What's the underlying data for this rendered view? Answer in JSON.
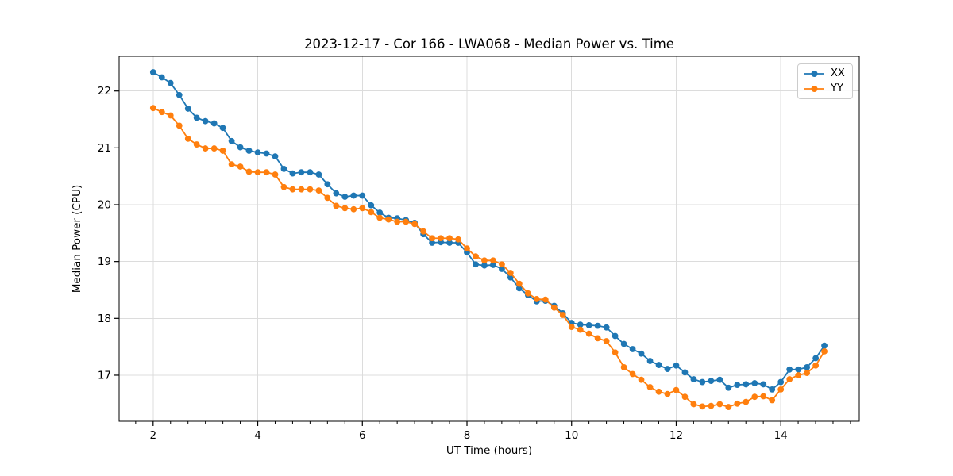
{
  "chart_data": {
    "type": "line",
    "title": "2023-12-17 - Cor 166 - LWA068 - Median Power vs. Time",
    "xlabel": "UT Time (hours)",
    "ylabel": "Median Power (CPU)",
    "xlim": [
      1.35,
      15.5
    ],
    "ylim": [
      16.19,
      22.61
    ],
    "xticks": [
      2,
      4,
      6,
      8,
      10,
      12,
      14
    ],
    "yticks": [
      17,
      18,
      19,
      20,
      21,
      22
    ],
    "x_minor_tick_step": 0.3333,
    "grid": true,
    "grid_color": "#dcdcdc",
    "spine_color": "#000000",
    "background_color": "#ffffff",
    "legend_position": "upper right",
    "x": [
      2.0,
      2.167,
      2.333,
      2.5,
      2.667,
      2.833,
      3.0,
      3.167,
      3.333,
      3.5,
      3.667,
      3.833,
      4.0,
      4.167,
      4.333,
      4.5,
      4.667,
      4.833,
      5.0,
      5.167,
      5.333,
      5.5,
      5.667,
      5.833,
      6.0,
      6.167,
      6.333,
      6.5,
      6.667,
      6.833,
      7.0,
      7.167,
      7.333,
      7.5,
      7.667,
      7.833,
      8.0,
      8.167,
      8.333,
      8.5,
      8.667,
      8.833,
      9.0,
      9.167,
      9.333,
      9.5,
      9.667,
      9.833,
      10.0,
      10.167,
      10.333,
      10.5,
      10.667,
      10.833,
      11.0,
      11.167,
      11.333,
      11.5,
      11.667,
      11.833,
      12.0,
      12.167,
      12.333,
      12.5,
      12.667,
      12.833,
      13.0,
      13.167,
      13.333,
      13.5,
      13.667,
      13.833,
      14.0,
      14.167,
      14.333,
      14.5,
      14.667,
      14.833
    ],
    "series": [
      {
        "name": "XX",
        "color": "#1f77b4",
        "marker": "circle",
        "values": [
          22.33,
          22.24,
          22.14,
          21.93,
          21.69,
          21.53,
          21.47,
          21.43,
          21.35,
          21.12,
          21.01,
          20.95,
          20.92,
          20.9,
          20.85,
          20.63,
          20.55,
          20.57,
          20.57,
          20.53,
          20.36,
          20.2,
          20.14,
          20.16,
          20.16,
          19.99,
          19.86,
          19.77,
          19.76,
          19.73,
          19.68,
          19.48,
          19.33,
          19.34,
          19.33,
          19.33,
          19.16,
          18.95,
          18.93,
          18.94,
          18.87,
          18.72,
          18.53,
          18.41,
          18.3,
          18.31,
          18.22,
          18.09,
          17.92,
          17.89,
          17.88,
          17.87,
          17.84,
          17.69,
          17.55,
          17.46,
          17.38,
          17.25,
          17.18,
          17.11,
          17.17,
          17.05,
          16.93,
          16.88,
          16.9,
          16.92,
          16.78,
          16.83,
          16.84,
          16.86,
          16.84,
          16.75,
          16.88,
          17.1,
          17.1,
          17.14,
          17.3,
          17.52
        ]
      },
      {
        "name": "YY",
        "color": "#ff7f0e",
        "marker": "circle",
        "values": [
          21.7,
          21.63,
          21.57,
          21.39,
          21.16,
          21.06,
          20.99,
          20.99,
          20.95,
          20.71,
          20.67,
          20.58,
          20.57,
          20.57,
          20.53,
          20.31,
          20.27,
          20.27,
          20.27,
          20.25,
          20.12,
          19.98,
          19.94,
          19.92,
          19.94,
          19.87,
          19.77,
          19.74,
          19.7,
          19.7,
          19.66,
          19.53,
          19.41,
          19.41,
          19.41,
          19.39,
          19.23,
          19.09,
          19.02,
          19.02,
          18.95,
          18.8,
          18.61,
          18.44,
          18.34,
          18.33,
          18.19,
          18.06,
          17.85,
          17.8,
          17.73,
          17.65,
          17.6,
          17.4,
          17.14,
          17.02,
          16.92,
          16.79,
          16.71,
          16.67,
          16.74,
          16.62,
          16.49,
          16.45,
          16.46,
          16.49,
          16.44,
          16.5,
          16.53,
          16.62,
          16.63,
          16.56,
          16.75,
          16.93,
          17.0,
          17.04,
          17.17,
          17.42
        ]
      }
    ]
  },
  "legend": {
    "items": [
      {
        "label": "XX",
        "color": "#1f77b4"
      },
      {
        "label": "YY",
        "color": "#ff7f0e"
      }
    ]
  }
}
